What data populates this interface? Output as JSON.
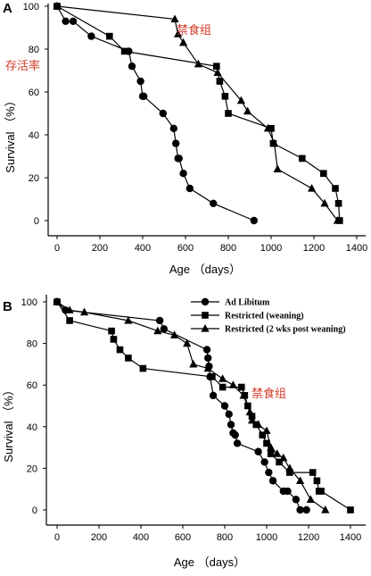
{
  "chart_data": [
    {
      "type": "line",
      "panel_label": "A",
      "xlabel": "Age  （days）",
      "ylabel": "Survival （%）",
      "xlim": [
        0,
        1400
      ],
      "ylim": [
        0,
        100
      ],
      "xticks": [
        "0",
        "200",
        "400",
        "600",
        "800",
        "1000",
        "1200",
        "1400"
      ],
      "yticks": [
        "0",
        "20",
        "40",
        "60",
        "80",
        "100"
      ],
      "annotations": [
        "禁食组",
        "存活率"
      ],
      "legend": null,
      "series": [
        {
          "marker": "circle",
          "x": [
            0,
            40,
            75,
            160,
            335,
            350,
            390,
            400,
            405,
            495,
            545,
            555,
            565,
            570,
            590,
            620,
            730,
            920
          ],
          "y": [
            100,
            93,
            93,
            86,
            79,
            72,
            65,
            58,
            58,
            50,
            43,
            36,
            29,
            29,
            22,
            15,
            8,
            0
          ]
        },
        {
          "marker": "square",
          "x": [
            0,
            245,
            315,
            745,
            760,
            785,
            800,
            1000,
            1010,
            1145,
            1245,
            1300,
            1315,
            1320
          ],
          "y": [
            100,
            86,
            79,
            72,
            65,
            58,
            50,
            43,
            36,
            29,
            22,
            15,
            8,
            0
          ]
        },
        {
          "marker": "triangle",
          "x": [
            0,
            550,
            565,
            590,
            660,
            750,
            860,
            890,
            985,
            1015,
            1030,
            1190,
            1250,
            1310
          ],
          "y": [
            100,
            94,
            87,
            83,
            73,
            69,
            56,
            51,
            43,
            36,
            24,
            15,
            8,
            0
          ]
        }
      ]
    },
    {
      "type": "line",
      "panel_label": "B",
      "xlabel": "Age  （days）",
      "ylabel": "Survival （%）",
      "xlim": [
        0,
        1400
      ],
      "ylim": [
        0,
        100
      ],
      "xticks": [
        "0",
        "200",
        "400",
        "600",
        "800",
        "1000",
        "1200",
        "1400"
      ],
      "yticks": [
        "0",
        "20",
        "40",
        "60",
        "80",
        "100"
      ],
      "annotations": [
        "禁食组"
      ],
      "legend": "top-right",
      "series": [
        {
          "name": "Ad Libitum",
          "marker": "circle",
          "x": [
            0,
            40,
            490,
            510,
            715,
            720,
            725,
            730,
            745,
            800,
            820,
            830,
            840,
            850,
            860,
            960,
            990,
            1010,
            1030,
            1080,
            1100,
            1140,
            1160,
            1190
          ],
          "y": [
            100,
            96,
            91,
            87,
            77,
            73,
            69,
            64,
            55,
            50,
            46,
            41,
            37,
            36,
            32,
            28,
            23,
            18,
            14,
            9,
            9,
            5,
            0,
            0
          ]
        },
        {
          "name": "Restricted (weaning)",
          "marker": "square",
          "x": [
            0,
            60,
            260,
            270,
            300,
            340,
            410,
            740,
            790,
            880,
            895,
            910,
            930,
            950,
            980,
            1000,
            1020,
            1060,
            1110,
            1220,
            1240,
            1250,
            1260,
            1400
          ],
          "y": [
            100,
            91,
            86,
            82,
            77,
            73,
            68,
            64,
            59,
            59,
            55,
            50,
            45,
            41,
            36,
            32,
            27,
            23,
            18,
            18,
            14,
            9,
            9,
            0
          ]
        },
        {
          "name": "Restricted (2 wks post weaning)",
          "marker": "triangle",
          "x": [
            0,
            60,
            130,
            340,
            480,
            560,
            620,
            650,
            720,
            790,
            840,
            890,
            920,
            930,
            960,
            1000,
            1020,
            1050,
            1080,
            1110,
            1160,
            1210,
            1280
          ],
          "y": [
            100,
            96,
            95,
            91,
            86,
            84,
            80,
            70,
            68,
            63,
            60,
            55,
            47,
            43,
            41,
            38,
            30,
            27,
            25,
            20,
            14,
            5,
            0
          ]
        }
      ]
    }
  ]
}
